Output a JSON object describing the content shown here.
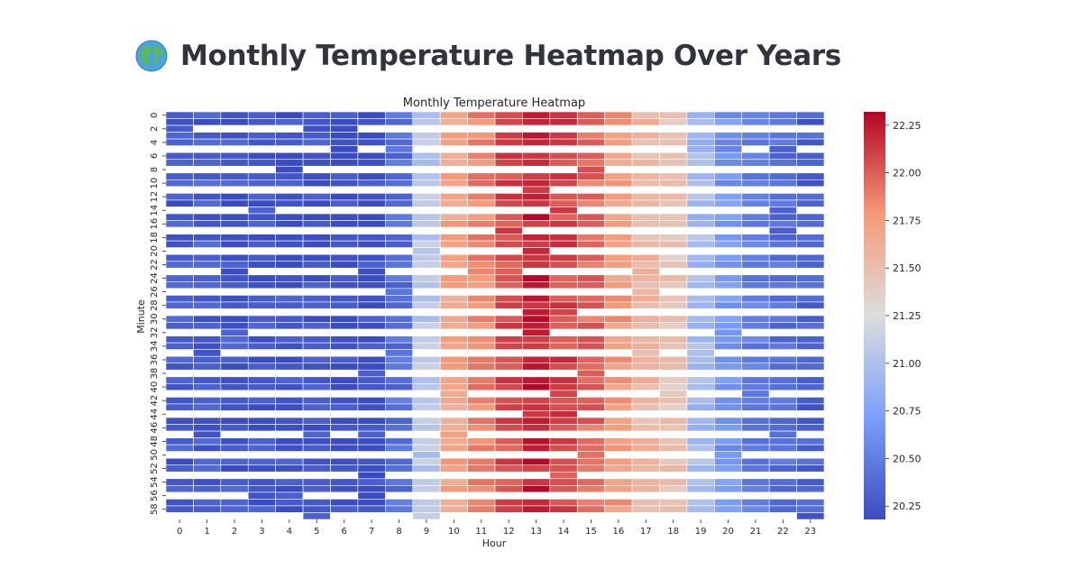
{
  "page": {
    "title": "Monthly Temperature Heatmap Over Years",
    "title_icon": "globe-icon"
  },
  "chart_data": {
    "type": "heatmap",
    "title": "Monthly Temperature Heatmap",
    "xlabel": "Hour",
    "ylabel": "Minute",
    "x_categories": [
      0,
      1,
      2,
      3,
      4,
      5,
      6,
      7,
      8,
      9,
      10,
      11,
      12,
      13,
      14,
      15,
      16,
      17,
      18,
      19,
      20,
      21,
      22,
      23
    ],
    "y_categories": [
      0,
      1,
      2,
      3,
      4,
      5,
      6,
      7,
      8,
      9,
      10,
      11,
      12,
      13,
      14,
      15,
      16,
      17,
      18,
      19,
      20,
      21,
      22,
      23,
      24,
      25,
      26,
      27,
      28,
      29,
      30,
      31,
      32,
      33,
      34,
      35,
      36,
      37,
      38,
      39,
      40,
      41,
      42,
      43,
      44,
      45,
      46,
      47,
      48,
      49,
      50,
      51,
      52,
      53,
      54,
      55,
      56,
      57,
      58,
      59
    ],
    "y_tick_labels_shown": [
      0,
      2,
      4,
      6,
      8,
      10,
      12,
      14,
      16,
      18,
      20,
      22,
      24,
      26,
      28,
      30,
      32,
      34,
      36,
      38,
      40,
      42,
      44,
      46,
      48,
      50,
      52,
      54,
      56,
      58
    ],
    "hour_mean_values": [
      20.27,
      20.3,
      20.26,
      20.24,
      20.25,
      20.23,
      20.2,
      20.21,
      20.4,
      21.05,
      21.7,
      21.85,
      22.05,
      22.2,
      22.08,
      21.95,
      21.75,
      21.55,
      21.45,
      20.95,
      20.65,
      20.5,
      20.4,
      20.32
    ],
    "missing_pattern": "every third minute row is mostly empty (white)",
    "colorbar": {
      "colormap": "coolwarm",
      "min": 20.18,
      "max": 22.32,
      "ticks": [
        20.25,
        20.5,
        20.75,
        21.0,
        21.25,
        21.5,
        21.75,
        22.0,
        22.25
      ],
      "tick_labels": [
        "20.25",
        "20.50",
        "20.75",
        "21.00",
        "21.25",
        "21.50",
        "21.75",
        "22.00",
        "22.25"
      ]
    },
    "grid": false,
    "cell_border_color": "#ffffff"
  }
}
